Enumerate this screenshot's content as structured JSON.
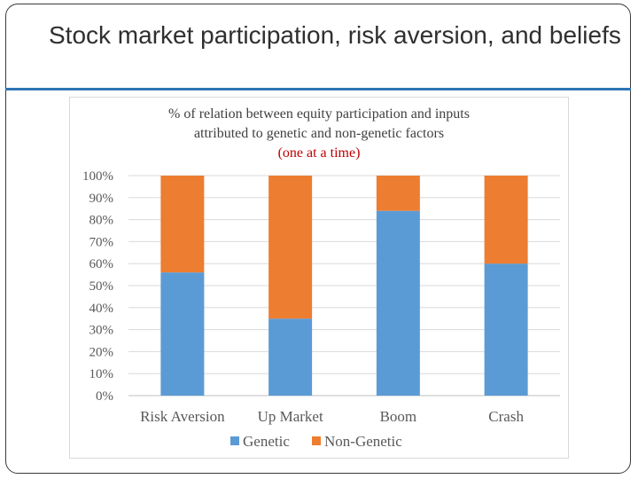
{
  "slide": {
    "title": "Stock market participation, risk aversion, and beliefs"
  },
  "chart_data": {
    "type": "bar",
    "stacked": true,
    "title_lines": [
      "% of  relation between equity participation and inputs",
      "attributed to genetic and non-genetic factors"
    ],
    "subtitle": "(one at a time)",
    "categories": [
      "Risk Aversion",
      "Up Market",
      "Boom",
      "Crash"
    ],
    "series": [
      {
        "name": "Genetic",
        "values": [
          56,
          35,
          84,
          60
        ]
      },
      {
        "name": "Non-Genetic",
        "values": [
          44,
          65,
          16,
          40
        ]
      }
    ],
    "ylim": [
      0,
      100
    ],
    "yticks": [
      "0%",
      "10%",
      "20%",
      "30%",
      "40%",
      "50%",
      "60%",
      "70%",
      "80%",
      "90%",
      "100%"
    ],
    "grid": true,
    "legend_position": "bottom",
    "colors": {
      "Genetic": "#5b9bd5",
      "Non-Genetic": "#ed7d31",
      "subtitle": "#c00000",
      "accent": "#2e75b6"
    }
  }
}
